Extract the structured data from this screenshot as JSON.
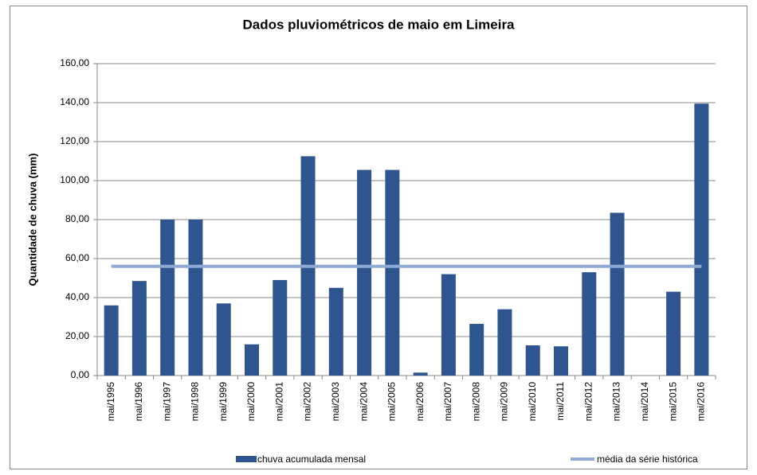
{
  "chart_data": {
    "type": "bar",
    "title": "Dados pluviométricos de maio em Limeira",
    "y_label": "Quantidade de chuva (mm)",
    "categories": [
      "mai/1995",
      "mai/1996",
      "mai/1997",
      "mai/1998",
      "mai/1999",
      "mai/2000",
      "mai/2001",
      "mai/2002",
      "mai/2003",
      "mai/2004",
      "mai/2005",
      "mai/2006",
      "mai/2007",
      "mai/2008",
      "mai/2009",
      "mai/2010",
      "mai/2011",
      "mai/2012",
      "mai/2013",
      "mai/2014",
      "mai/2015",
      "mai/2016"
    ],
    "series": [
      {
        "name": "chuva acumulada mensal",
        "type": "bar",
        "color": "#2e5590",
        "values": [
          36,
          48.5,
          80,
          80,
          37,
          16,
          49,
          112.5,
          45,
          105.5,
          105.5,
          1.5,
          52,
          26.5,
          34,
          15.5,
          15,
          53,
          83.5,
          0,
          43,
          139.5
        ]
      },
      {
        "name": "média da série histórica",
        "type": "line",
        "color": "#8fa9d6",
        "values": [
          56,
          56,
          56,
          56,
          56,
          56,
          56,
          56,
          56,
          56,
          56,
          56,
          56,
          56,
          56,
          56,
          56,
          56,
          56,
          56,
          56,
          56
        ]
      }
    ],
    "ylim": [
      0,
      160
    ],
    "yticks": [
      {
        "value": 0,
        "label": "0,00"
      },
      {
        "value": 20,
        "label": "20,00"
      },
      {
        "value": 40,
        "label": "40,00"
      },
      {
        "value": 60,
        "label": "60,00"
      },
      {
        "value": 80,
        "label": "80,00"
      },
      {
        "value": 100,
        "label": "100,00"
      },
      {
        "value": 120,
        "label": "120,00"
      },
      {
        "value": 140,
        "label": "140,00"
      },
      {
        "value": 160,
        "label": "160,00"
      }
    ],
    "grid": true,
    "legend": "bottom"
  }
}
